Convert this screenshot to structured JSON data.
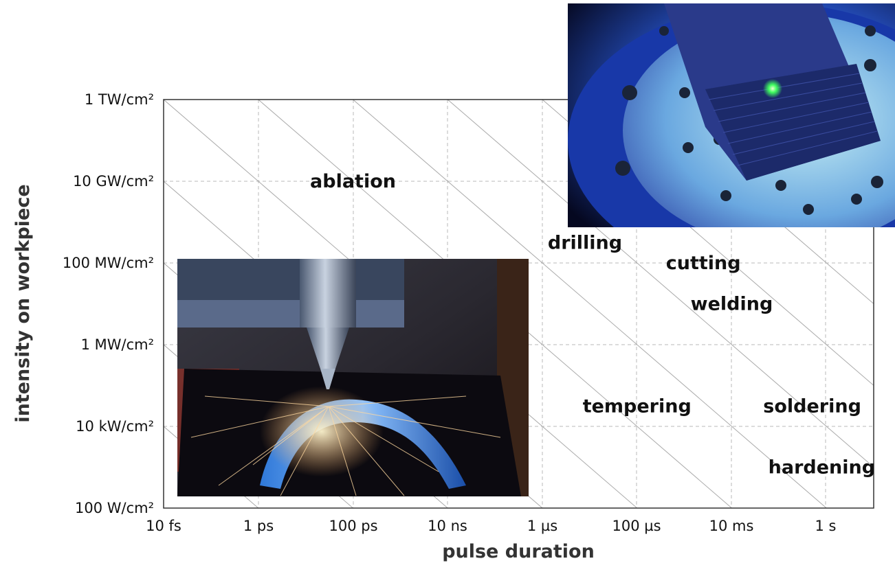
{
  "chart_data": {
    "type": "scatter",
    "x_scale": "log",
    "y_scale": "log",
    "xlabel": "pulse duration",
    "ylabel": "intensity on workpiece",
    "x_ticks": [
      "10 fs",
      "1 ps",
      "100 ps",
      "10 ns",
      "1 µs",
      "100 µs",
      "10 ms",
      "1 s"
    ],
    "y_ticks": [
      "1 TW/cm²",
      "10 GW/cm²",
      "100 MW/cm²",
      "1 MW/cm²",
      "10 kW/cm²",
      "100 W/cm²"
    ],
    "grid": true,
    "regions": [
      {
        "label": "ablation",
        "x_decade": 2.0,
        "y_decade": 1.0
      },
      {
        "label": "drilling",
        "x_decade": 4.45,
        "y_decade": 1.75
      },
      {
        "label": "cutting",
        "x_decade": 5.7,
        "y_decade": 2.0
      },
      {
        "label": "welding",
        "x_decade": 6.0,
        "y_decade": 2.5
      },
      {
        "label": "tempering",
        "x_decade": 5.0,
        "y_decade": 3.75
      },
      {
        "label": "soldering",
        "x_decade": 6.85,
        "y_decade": 3.75
      },
      {
        "label": "hardening",
        "x_decade": 6.95,
        "y_decade": 4.5
      }
    ]
  },
  "photos": [
    {
      "name": "laser-drilling-photo",
      "subject": "laser nozzle drilling a turbine blade with sparks"
    },
    {
      "name": "laser-stage-photo",
      "subject": "laser spot on workpiece mounted on machining stage"
    }
  ]
}
